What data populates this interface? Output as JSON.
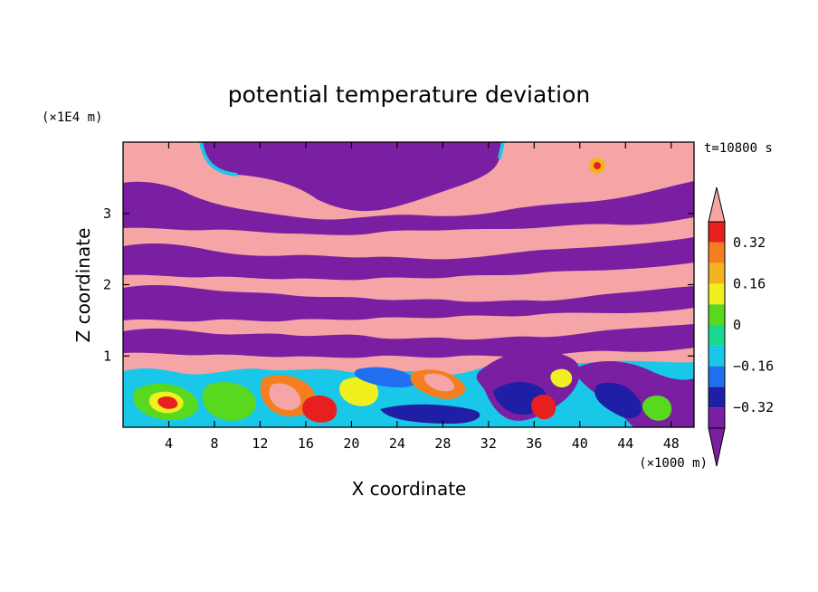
{
  "chart_data": {
    "type": "heatmap",
    "title": "potential temperature deviation",
    "time_label": "t=10800 s",
    "xlabel": "X coordinate",
    "ylabel": "Z coordinate",
    "x_unit": "(×1000 m)",
    "y_unit": "(×1E4 m)",
    "xlim": [
      0,
      50
    ],
    "ylim": [
      0,
      4
    ],
    "x_ticks": [
      4,
      8,
      12,
      16,
      20,
      24,
      28,
      32,
      36,
      40,
      44,
      48
    ],
    "y_ticks": [
      1,
      2,
      3
    ],
    "colorbar": {
      "tick_labels": [
        "0.32",
        "0.16",
        "0",
        "-0.16",
        "-0.32"
      ],
      "tick_values": [
        0.32,
        0.16,
        0,
        -0.16,
        -0.32
      ],
      "levels": [
        -0.4,
        -0.32,
        -0.24,
        -0.16,
        -0.08,
        0,
        0.08,
        0.16,
        0.24,
        0.32,
        0.4
      ],
      "colors": [
        "#7a1fa2",
        "#1f1fa5",
        "#1f6ff0",
        "#19c8e8",
        "#19d890",
        "#58d81f",
        "#f0f01f",
        "#f5b41f",
        "#f57f1f",
        "#e81f1f",
        "#f5a5a5"
      ],
      "under_color": "#7a1fa2",
      "over_color": "#f5a5a5",
      "extend": "both"
    }
  }
}
